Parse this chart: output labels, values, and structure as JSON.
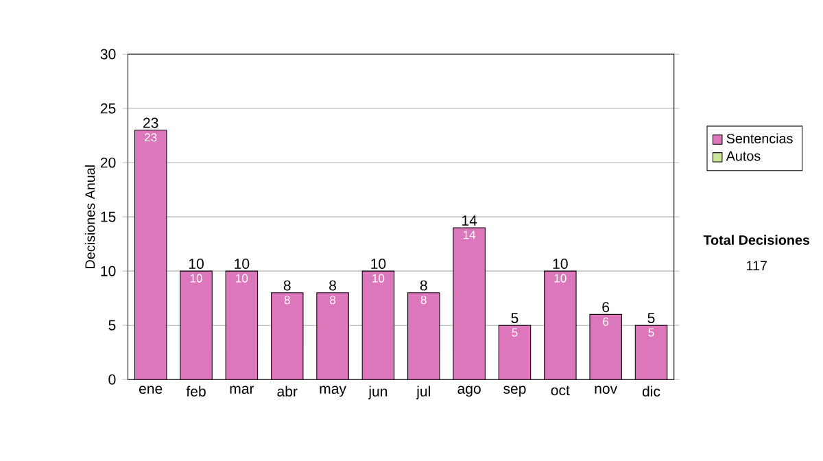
{
  "chart_data": {
    "type": "bar",
    "stacked": true,
    "ylabel": "Decisiones Anual",
    "categories": [
      "ene",
      "feb",
      "mar",
      "abr",
      "may",
      "jun",
      "jul",
      "ago",
      "sep",
      "oct",
      "nov",
      "dic"
    ],
    "series": [
      {
        "name": "Sentencias",
        "color": "#dd77bb",
        "values": [
          23,
          10,
          10,
          8,
          8,
          10,
          8,
          14,
          5,
          10,
          6,
          5
        ],
        "value_labels": [
          "23",
          "10",
          "10",
          "8",
          "8",
          "10",
          "8",
          "14",
          "5",
          "10",
          "6",
          "5"
        ]
      },
      {
        "name": "Autos",
        "color": "#cce699",
        "values": [
          0,
          0,
          0,
          0,
          0,
          0,
          0,
          0,
          0,
          0,
          0,
          0
        ]
      }
    ],
    "totals": [
      "23",
      "10",
      "10",
      "8",
      "8",
      "10",
      "8",
      "14",
      "5",
      "10",
      "6",
      "5"
    ],
    "ylim": [
      0,
      30
    ],
    "yticks": [
      0,
      5,
      10,
      15,
      20,
      25,
      30
    ],
    "grid": "y",
    "legend": "right",
    "annotations": [
      "Total Decisiones",
      "117"
    ]
  }
}
